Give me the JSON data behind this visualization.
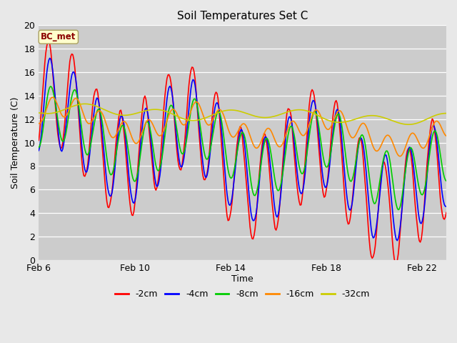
{
  "title": "Soil Temperatures Set C",
  "xlabel": "Time",
  "ylabel": "Soil Temperature (C)",
  "annotation": "BC_met",
  "ylim": [
    0,
    20
  ],
  "fig_bg_color": "#e8e8e8",
  "plot_bg_color": "#cccccc",
  "series_colors": {
    "-2cm": "#ff0000",
    "-4cm": "#0000ff",
    "-8cm": "#00cc00",
    "-16cm": "#ff8800",
    "-32cm": "#cccc00"
  },
  "x_tick_labels": [
    "Feb 6",
    "Feb 10",
    "Feb 14",
    "Feb 18",
    "Feb 22"
  ],
  "x_tick_positions": [
    0,
    4,
    8,
    12,
    16
  ],
  "y_ticks": [
    0,
    2,
    4,
    6,
    8,
    10,
    12,
    14,
    16,
    18,
    20
  ]
}
